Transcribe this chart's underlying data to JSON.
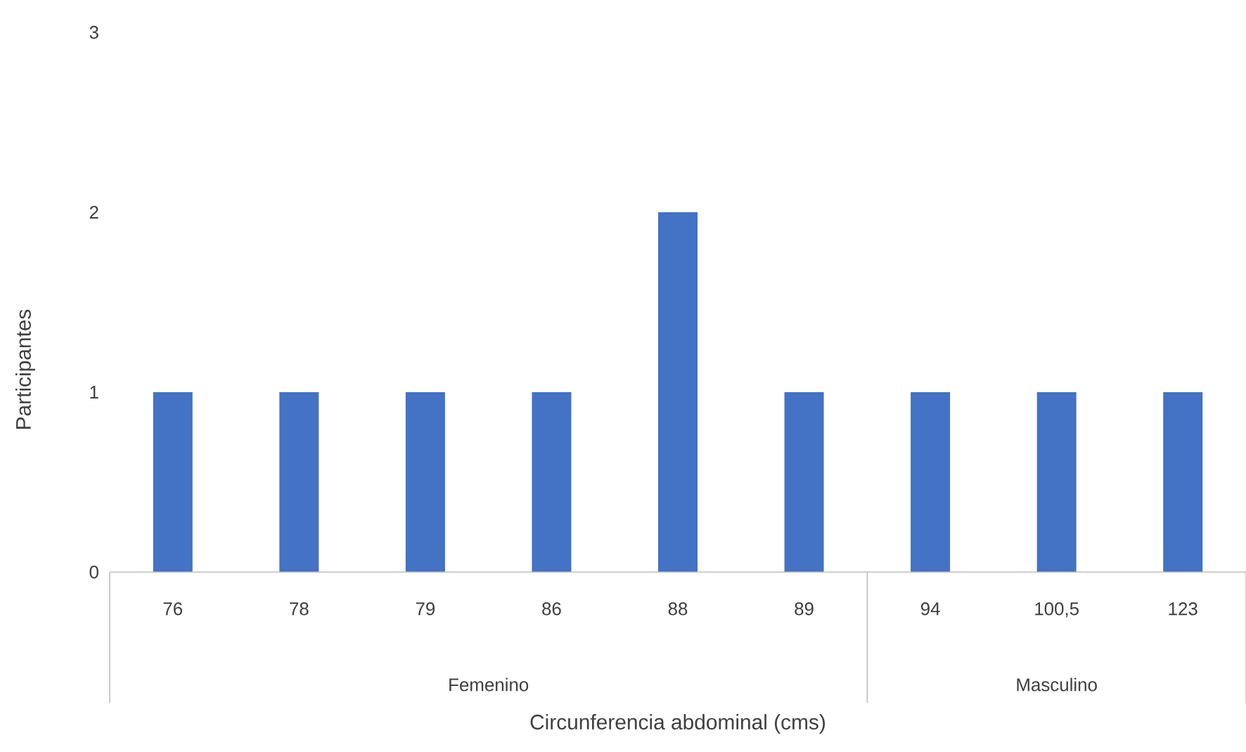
{
  "chart_data": {
    "type": "bar",
    "xlabel": "Circunferencia abdominal (cms)",
    "ylabel": "Participantes",
    "categories": [
      "76",
      "78",
      "79",
      "86",
      "88",
      "89",
      "94",
      "100,5",
      "123"
    ],
    "values": [
      1,
      1,
      1,
      1,
      2,
      1,
      1,
      1,
      1
    ],
    "color": "#4472c4",
    "ylim": [
      0,
      3
    ],
    "yticks": [
      0,
      1,
      2,
      3
    ],
    "annotations": [
      "Femenino",
      "Masculino"
    ]
  }
}
